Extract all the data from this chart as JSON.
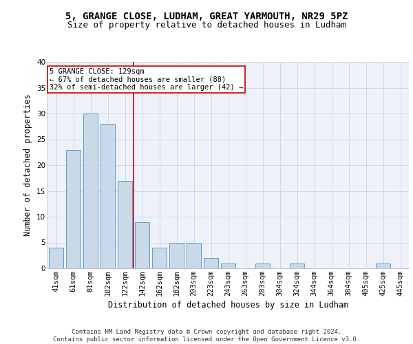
{
  "title_line1": "5, GRANGE CLOSE, LUDHAM, GREAT YARMOUTH, NR29 5PZ",
  "title_line2": "Size of property relative to detached houses in Ludham",
  "xlabel": "Distribution of detached houses by size in Ludham",
  "ylabel": "Number of detached properties",
  "categories": [
    "41sqm",
    "61sqm",
    "81sqm",
    "102sqm",
    "122sqm",
    "142sqm",
    "162sqm",
    "182sqm",
    "203sqm",
    "223sqm",
    "243sqm",
    "263sqm",
    "283sqm",
    "304sqm",
    "324sqm",
    "344sqm",
    "364sqm",
    "384sqm",
    "405sqm",
    "425sqm",
    "445sqm"
  ],
  "values": [
    4,
    23,
    30,
    28,
    17,
    9,
    4,
    5,
    5,
    2,
    1,
    0,
    1,
    0,
    1,
    0,
    0,
    0,
    0,
    1,
    0
  ],
  "bar_color": "#c9d9e8",
  "bar_edge_color": "#5b9bd5",
  "grid_color": "#d0d8e8",
  "background_color": "#eef2f8",
  "annotation_box_color": "#cc0000",
  "vline_color": "#cc0000",
  "vline_position": 4.5,
  "annotation_text": "5 GRANGE CLOSE: 129sqm\n← 67% of detached houses are smaller (88)\n32% of semi-detached houses are larger (42) →",
  "footer_line1": "Contains HM Land Registry data © Crown copyright and database right 2024.",
  "footer_line2": "Contains public sector information licensed under the Open Government Licence v3.0.",
  "ylim": [
    0,
    40
  ],
  "yticks": [
    0,
    5,
    10,
    15,
    20,
    25,
    30,
    35,
    40
  ],
  "title_fontsize": 10,
  "subtitle_fontsize": 9,
  "axis_label_fontsize": 8.5,
  "tick_fontsize": 7.5,
  "annotation_fontsize": 7.5,
  "footer_fontsize": 6.5
}
